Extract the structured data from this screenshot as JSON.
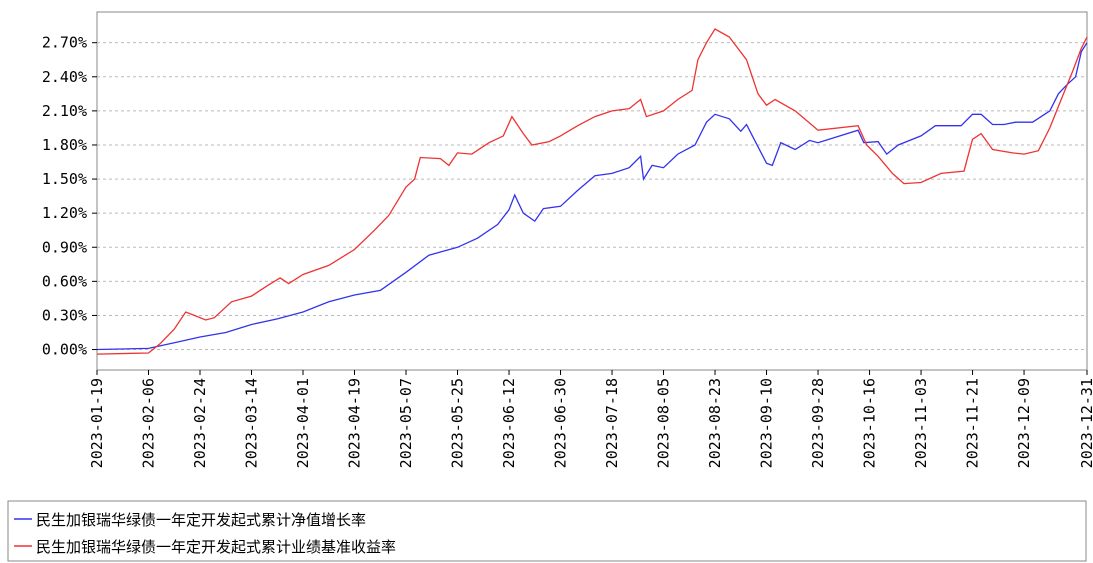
{
  "chart_data": {
    "type": "line",
    "xlim": [
      "2023-01-19",
      "2023-12-31"
    ],
    "xticks": [
      "2023-01-19",
      "2023-02-06",
      "2023-02-24",
      "2023-03-14",
      "2023-04-01",
      "2023-04-19",
      "2023-05-07",
      "2023-05-25",
      "2023-06-12",
      "2023-06-30",
      "2023-07-18",
      "2023-08-05",
      "2023-08-23",
      "2023-09-10",
      "2023-09-28",
      "2023-10-16",
      "2023-11-03",
      "2023-11-21",
      "2023-12-09",
      "2023-12-31"
    ],
    "ylim": [
      -0.18,
      2.97
    ],
    "yticks": [
      {
        "value": 0,
        "label": "0.00%"
      },
      {
        "value": 0.3,
        "label": "0.30%"
      },
      {
        "value": 0.6,
        "label": "0.60%"
      },
      {
        "value": 0.9,
        "label": "0.90%"
      },
      {
        "value": 1.2,
        "label": "1.20%"
      },
      {
        "value": 1.5,
        "label": "1.50%"
      },
      {
        "value": 1.8,
        "label": "1.80%"
      },
      {
        "value": 2.1,
        "label": "2.10%"
      },
      {
        "value": 2.4,
        "label": "2.40%"
      },
      {
        "value": 2.7,
        "label": "2.70%"
      }
    ],
    "grid": true,
    "series": [
      {
        "name": "民生加银瑞华绿债一年定开发起式累计净值增长率",
        "color": "#3333ee",
        "x": [
          "2023-01-19",
          "2023-02-06",
          "2023-02-15",
          "2023-02-24",
          "2023-03-05",
          "2023-03-14",
          "2023-03-23",
          "2023-04-01",
          "2023-04-10",
          "2023-04-19",
          "2023-04-28",
          "2023-05-07",
          "2023-05-15",
          "2023-05-25",
          "2023-06-01",
          "2023-06-08",
          "2023-06-12",
          "2023-06-14",
          "2023-06-17",
          "2023-06-21",
          "2023-06-24",
          "2023-06-30",
          "2023-07-06",
          "2023-07-12",
          "2023-07-18",
          "2023-07-24",
          "2023-07-28",
          "2023-07-29",
          "2023-08-01",
          "2023-08-05",
          "2023-08-10",
          "2023-08-16",
          "2023-08-20",
          "2023-08-23",
          "2023-08-28",
          "2023-09-01",
          "2023-09-03",
          "2023-09-10",
          "2023-09-12",
          "2023-09-15",
          "2023-09-20",
          "2023-09-25",
          "2023-09-28",
          "2023-10-03",
          "2023-10-12",
          "2023-10-14",
          "2023-10-19",
          "2023-10-22",
          "2023-10-26",
          "2023-11-03",
          "2023-11-08",
          "2023-11-17",
          "2023-11-21",
          "2023-11-24",
          "2023-11-28",
          "2023-12-02",
          "2023-12-06",
          "2023-12-12",
          "2023-12-18",
          "2023-12-21",
          "2023-12-24",
          "2023-12-27",
          "2023-12-29",
          "2023-12-31"
        ],
        "values": [
          0.0,
          0.01,
          0.06,
          0.11,
          0.15,
          0.22,
          0.27,
          0.33,
          0.42,
          0.48,
          0.52,
          0.68,
          0.83,
          0.9,
          0.98,
          1.1,
          1.23,
          1.36,
          1.2,
          1.13,
          1.24,
          1.26,
          1.4,
          1.53,
          1.55,
          1.6,
          1.7,
          1.5,
          1.62,
          1.6,
          1.72,
          1.8,
          2.0,
          2.07,
          2.03,
          1.92,
          1.98,
          1.64,
          1.62,
          1.82,
          1.76,
          1.84,
          1.82,
          1.86,
          1.93,
          1.82,
          1.83,
          1.72,
          1.8,
          1.88,
          1.97,
          1.97,
          2.07,
          2.07,
          1.98,
          1.98,
          2.0,
          2.0,
          2.1,
          2.25,
          2.33,
          2.4,
          2.62,
          2.7
        ]
      },
      {
        "name": "民生加银瑞华绿债一年定开发起式累计业绩基准收益率",
        "color": "#ee3333",
        "x": [
          "2023-01-19",
          "2023-02-06",
          "2023-02-10",
          "2023-02-15",
          "2023-02-19",
          "2023-02-22",
          "2023-02-26",
          "2023-03-01",
          "2023-03-07",
          "2023-03-14",
          "2023-03-20",
          "2023-03-24",
          "2023-03-27",
          "2023-04-01",
          "2023-04-10",
          "2023-04-19",
          "2023-04-26",
          "2023-05-01",
          "2023-05-07",
          "2023-05-10",
          "2023-05-12",
          "2023-05-19",
          "2023-05-22",
          "2023-05-25",
          "2023-05-30",
          "2023-06-05",
          "2023-06-10",
          "2023-06-13",
          "2023-06-17",
          "2023-06-20",
          "2023-06-26",
          "2023-06-30",
          "2023-07-06",
          "2023-07-12",
          "2023-07-18",
          "2023-07-24",
          "2023-07-28",
          "2023-07-30",
          "2023-08-05",
          "2023-08-10",
          "2023-08-15",
          "2023-08-17",
          "2023-08-20",
          "2023-08-23",
          "2023-08-28",
          "2023-09-03",
          "2023-09-07",
          "2023-09-10",
          "2023-09-13",
          "2023-09-20",
          "2023-09-28",
          "2023-10-12",
          "2023-10-15",
          "2023-10-19",
          "2023-10-24",
          "2023-10-28",
          "2023-11-03",
          "2023-11-10",
          "2023-11-18",
          "2023-11-21",
          "2023-11-24",
          "2023-11-28",
          "2023-12-05",
          "2023-12-09",
          "2023-12-14",
          "2023-12-18",
          "2023-12-22",
          "2023-12-26",
          "2023-12-29",
          "2023-12-31"
        ],
        "values": [
          -0.04,
          -0.03,
          0.05,
          0.18,
          0.33,
          0.3,
          0.26,
          0.28,
          0.42,
          0.47,
          0.57,
          0.63,
          0.58,
          0.66,
          0.74,
          0.88,
          1.05,
          1.18,
          1.43,
          1.5,
          1.69,
          1.68,
          1.62,
          1.73,
          1.72,
          1.82,
          1.88,
          2.05,
          1.9,
          1.8,
          1.83,
          1.88,
          1.97,
          2.05,
          2.1,
          2.12,
          2.2,
          2.05,
          2.1,
          2.2,
          2.28,
          2.55,
          2.7,
          2.82,
          2.75,
          2.55,
          2.25,
          2.15,
          2.2,
          2.1,
          1.93,
          1.97,
          1.8,
          1.7,
          1.55,
          1.46,
          1.47,
          1.55,
          1.57,
          1.85,
          1.9,
          1.76,
          1.73,
          1.72,
          1.75,
          1.95,
          2.2,
          2.45,
          2.65,
          2.75
        ]
      }
    ]
  }
}
